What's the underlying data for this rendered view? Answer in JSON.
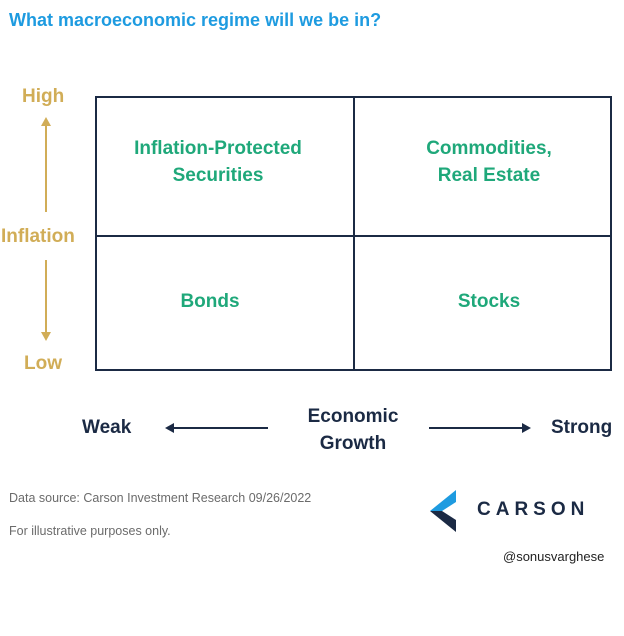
{
  "title": "What macroeconomic regime will we be in?",
  "y_axis": {
    "high": "High",
    "label": "Inflation",
    "low": "Low"
  },
  "x_axis": {
    "weak": "Weak",
    "label_line1": "Economic",
    "label_line2": "Growth",
    "strong": "Strong"
  },
  "quadrants": {
    "top_left": {
      "line1": "Inflation-Protected",
      "line2": "Securities"
    },
    "top_right": {
      "line1": "Commodities,",
      "line2": "Real Estate"
    },
    "bottom_left": {
      "line1": "Bonds"
    },
    "bottom_right": {
      "line1": "Stocks"
    }
  },
  "footer": {
    "source": "Data source: Carson Investment Research  09/26/2022",
    "note": "For illustrative purposes only."
  },
  "logo": {
    "text": "CARSON",
    "icon": "carson-chevron-icon"
  },
  "handle": "@sonusvarghese",
  "colors": {
    "title": "#1e9be0",
    "axis_gold": "#d1ad57",
    "navy": "#1b2a44",
    "green": "#1fa87a",
    "logo_blue": "#1e9be0"
  }
}
